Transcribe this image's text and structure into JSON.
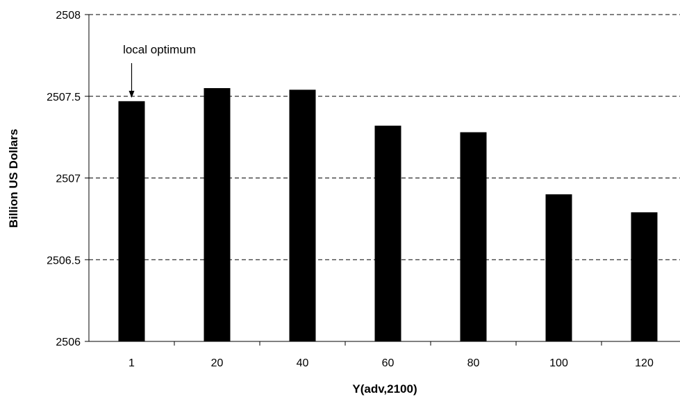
{
  "chart_data": {
    "type": "bar",
    "title": "",
    "xlabel": "Y(adv,2100)",
    "ylabel": "Billion US Dollars",
    "categories": [
      "1",
      "20",
      "40",
      "60",
      "80",
      "100",
      "120"
    ],
    "values": [
      2507.47,
      2507.55,
      2507.54,
      2507.32,
      2507.28,
      2506.9,
      2506.79
    ],
    "ylim": [
      2506,
      2508
    ],
    "yticks": [
      "2506",
      "2506.5",
      "2507",
      "2507.5",
      "2508"
    ],
    "grid": "horizontal dashed",
    "bar_color": "#000000",
    "annotation": {
      "text": "local optimum",
      "category": "1"
    }
  }
}
